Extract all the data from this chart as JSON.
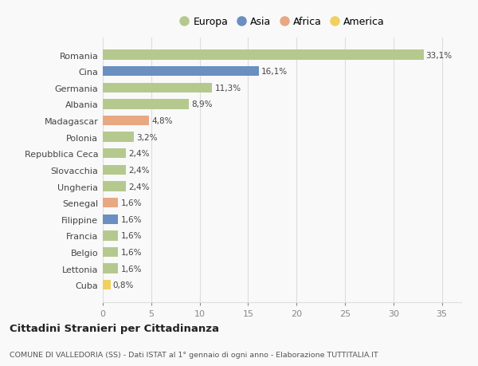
{
  "categories": [
    "Romania",
    "Cina",
    "Germania",
    "Albania",
    "Madagascar",
    "Polonia",
    "Repubblica Ceca",
    "Slovacchia",
    "Ungheria",
    "Senegal",
    "Filippine",
    "Francia",
    "Belgio",
    "Lettonia",
    "Cuba"
  ],
  "values": [
    33.1,
    16.1,
    11.3,
    8.9,
    4.8,
    3.2,
    2.4,
    2.4,
    2.4,
    1.6,
    1.6,
    1.6,
    1.6,
    1.6,
    0.8
  ],
  "labels": [
    "33,1%",
    "16,1%",
    "11,3%",
    "8,9%",
    "4,8%",
    "3,2%",
    "2,4%",
    "2,4%",
    "2,4%",
    "1,6%",
    "1,6%",
    "1,6%",
    "1,6%",
    "1,6%",
    "0,8%"
  ],
  "continents": [
    "Europa",
    "Asia",
    "Europa",
    "Europa",
    "Africa",
    "Europa",
    "Europa",
    "Europa",
    "Europa",
    "Africa",
    "Asia",
    "Europa",
    "Europa",
    "Europa",
    "America"
  ],
  "colors": {
    "Europa": "#b5c98e",
    "Asia": "#6a8fc0",
    "Africa": "#e8a882",
    "America": "#f0d060"
  },
  "legend_order": [
    "Europa",
    "Asia",
    "Africa",
    "America"
  ],
  "title": "Cittadini Stranieri per Cittadinanza",
  "subtitle": "COMUNE DI VALLEDORIA (SS) - Dati ISTAT al 1° gennaio di ogni anno - Elaborazione TUTTITALIA.IT",
  "xlim": [
    0,
    37
  ],
  "xticks": [
    0,
    5,
    10,
    15,
    20,
    25,
    30,
    35
  ],
  "background_color": "#f9f9f9",
  "grid_color": "#dddddd",
  "bar_height": 0.6,
  "label_fontsize": 7.5,
  "ytick_fontsize": 8,
  "xtick_fontsize": 8,
  "title_fontsize": 9.5,
  "subtitle_fontsize": 6.8
}
